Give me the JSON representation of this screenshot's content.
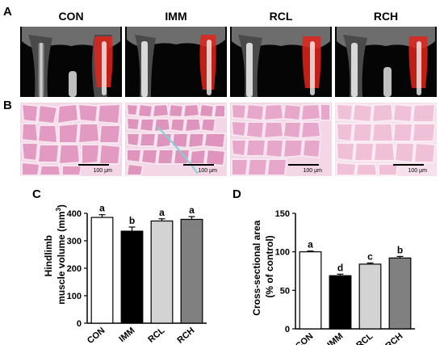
{
  "panels": {
    "A": "A",
    "B": "B",
    "C": "C",
    "D": "D"
  },
  "groups": [
    "CON",
    "IMM",
    "RCL",
    "RCH"
  ],
  "scale_bar_label": "100 μm",
  "colors": {
    "CON": "#ffffff",
    "IMM": "#000000",
    "RCL": "#d3d3d3",
    "RCH": "#808080",
    "muscle_highlight": "#e0251b",
    "histology_stain": "#e9a6c9"
  },
  "chart_data": [
    {
      "panel": "C",
      "type": "bar",
      "categories": [
        "CON",
        "IMM",
        "RCL",
        "RCH"
      ],
      "values": [
        385,
        335,
        372,
        378
      ],
      "errors": [
        10,
        15,
        8,
        10
      ],
      "significance_letters": [
        "a",
        "b",
        "a",
        "a"
      ],
      "title": "",
      "xlabel": "",
      "ylabel_line1": "Hindlimb",
      "ylabel_line2": "muscle volume (mm",
      "ylabel_sup": "3",
      "ylabel_close": ")",
      "ylim": [
        0,
        400
      ],
      "yticks": [
        0,
        100,
        200,
        300,
        400
      ],
      "grid": false,
      "legend": "none"
    },
    {
      "panel": "D",
      "type": "bar",
      "categories": [
        "CON",
        "IMM",
        "RCL",
        "RCH"
      ],
      "values": [
        100,
        69,
        84,
        92
      ],
      "errors": [
        1,
        2,
        1.5,
        2
      ],
      "significance_letters": [
        "a",
        "d",
        "c",
        "b"
      ],
      "title": "",
      "xlabel": "",
      "ylabel_line1": "Cross-sectional area",
      "ylabel_line2": "(% of control)",
      "ylim": [
        0,
        150
      ],
      "yticks": [
        0,
        50,
        100,
        150
      ],
      "grid": false,
      "legend": "none"
    }
  ]
}
